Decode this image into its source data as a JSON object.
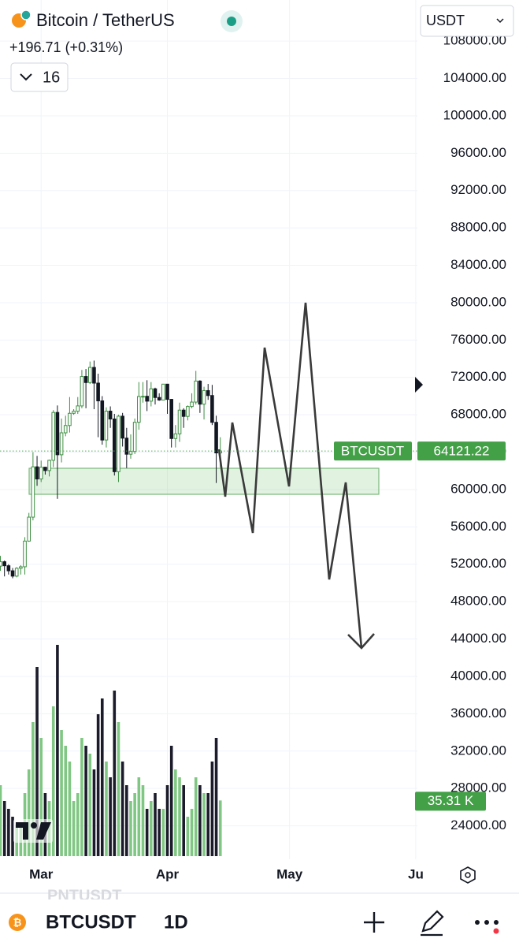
{
  "header": {
    "title": "Bitcoin / TetherUS",
    "change": "+196.71 (+0.31%)",
    "indicator_count": "16",
    "currency": "USDT"
  },
  "chart_data": {
    "type": "candlestick",
    "candles": [
      [
        51800,
        52900,
        51300,
        52270
      ],
      [
        52270,
        52400,
        50700,
        51840
      ],
      [
        51840,
        52000,
        50900,
        51300
      ],
      [
        51300,
        51600,
        50500,
        50730
      ],
      [
        50730,
        51700,
        50600,
        51570
      ],
      [
        51570,
        51900,
        50900,
        51730
      ],
      [
        51730,
        54900,
        50900,
        54480
      ],
      [
        54480,
        57500,
        54400,
        57040
      ],
      [
        57040,
        64000,
        56700,
        62430
      ],
      [
        62430,
        63600,
        60400,
        61130
      ],
      [
        61130,
        63100,
        60800,
        62390
      ],
      [
        62390,
        62400,
        61600,
        62030
      ],
      [
        62030,
        63200,
        61400,
        63130
      ],
      [
        63130,
        68500,
        62400,
        68250
      ],
      [
        68250,
        69000,
        59000,
        63720
      ],
      [
        63720,
        67600,
        62900,
        66070
      ],
      [
        66070,
        67900,
        65700,
        66850
      ],
      [
        66850,
        69900,
        66100,
        68160
      ],
      [
        68160,
        68600,
        68000,
        68380
      ],
      [
        68380,
        69900,
        68100,
        68950
      ],
      [
        68950,
        72800,
        68700,
        72100
      ],
      [
        72100,
        72900,
        68700,
        71450
      ],
      [
        71450,
        73700,
        71300,
        73070
      ],
      [
        73070,
        73800,
        68600,
        71390
      ],
      [
        71390,
        72400,
        65600,
        69490
      ],
      [
        69490,
        70000,
        64800,
        65300
      ],
      [
        65300,
        68800,
        64500,
        68390
      ],
      [
        68390,
        68900,
        66600,
        67550
      ],
      [
        67550,
        68100,
        61500,
        61910
      ],
      [
        61910,
        68000,
        60800,
        67850
      ],
      [
        67850,
        68200,
        64600,
        65500
      ],
      [
        65500,
        66600,
        62300,
        63780
      ],
      [
        63780,
        65900,
        63300,
        64070
      ],
      [
        64070,
        67600,
        63800,
        67200
      ],
      [
        67200,
        71500,
        66400,
        69960
      ],
      [
        69960,
        71500,
        69300,
        69980
      ],
      [
        69980,
        71700,
        68400,
        69460
      ],
      [
        69460,
        71500,
        68900,
        70780
      ],
      [
        70780,
        70900,
        69100,
        69850
      ],
      [
        69850,
        70300,
        69500,
        69580
      ],
      [
        69580,
        71300,
        69600,
        71280
      ],
      [
        71280,
        71300,
        68100,
        69650
      ],
      [
        69650,
        69700,
        64500,
        65460
      ],
      [
        65460,
        66900,
        64500,
        65960
      ],
      [
        65960,
        69300,
        65100,
        68500
      ],
      [
        68500,
        68700,
        66600,
        67830
      ],
      [
        67830,
        69000,
        67400,
        68890
      ],
      [
        68890,
        70300,
        68700,
        69360
      ],
      [
        69360,
        72700,
        69100,
        71610
      ],
      [
        71610,
        71700,
        68200,
        69140
      ],
      [
        69140,
        71000,
        67500,
        70590
      ],
      [
        70590,
        71300,
        69600,
        70060
      ],
      [
        70060,
        71200,
        66900,
        67190
      ],
      [
        67190,
        67900,
        60700,
        63920
      ],
      [
        63920,
        65600,
        62400,
        64121.22
      ]
    ],
    "volumes": [
      45,
      35,
      30,
      25,
      20,
      18,
      40,
      55,
      85,
      120,
      75,
      40,
      35,
      95,
      134,
      80,
      70,
      60,
      35,
      40,
      75,
      70,
      65,
      55,
      90,
      100,
      60,
      50,
      105,
      85,
      60,
      45,
      35,
      40,
      50,
      45,
      30,
      35,
      40,
      30,
      30,
      45,
      70,
      55,
      50,
      45,
      25,
      30,
      50,
      45,
      40,
      40,
      60,
      75,
      35.31
    ],
    "volume_label": "35.31 K",
    "volume_lim": [
      0,
      135
    ],
    "symbol": "BTCUSDT",
    "last_price": 64121.22,
    "up_color": "#3f8f43",
    "down_color": "#131722",
    "volume_up_color": "#80c783",
    "volume_down_color": "#1b1b2b",
    "xlim": [
      -0.1,
      102.4
    ],
    "xticks": [
      {
        "value": 10,
        "label": "Mar"
      },
      {
        "value": 41,
        "label": "Apr"
      },
      {
        "value": 71,
        "label": "May"
      },
      {
        "value": 102,
        "label": "Ju"
      }
    ],
    "ylim": [
      20420,
      112400
    ],
    "yticks": [
      {
        "value": 24000,
        "label": "24000.00"
      },
      {
        "value": 28000,
        "label": "28000.00"
      },
      {
        "value": 32000,
        "label": "32000.00"
      },
      {
        "value": 36000,
        "label": "36000.00"
      },
      {
        "value": 40000,
        "label": "40000.00"
      },
      {
        "value": 44000,
        "label": "44000.00"
      },
      {
        "value": 48000,
        "label": "48000.00"
      },
      {
        "value": 52000,
        "label": "52000.00"
      },
      {
        "value": 56000,
        "label": "56000.00"
      },
      {
        "value": 60000,
        "label": "60000.00"
      },
      {
        "value": 64000,
        "label": "64000.00"
      },
      {
        "value": 68000,
        "label": "68000.00"
      },
      {
        "value": 72000,
        "label": "72000.00"
      },
      {
        "value": 76000,
        "label": "76000.00"
      },
      {
        "value": 80000,
        "label": "80000.00"
      },
      {
        "value": 84000,
        "label": "84000.00"
      },
      {
        "value": 88000,
        "label": "88000.00"
      },
      {
        "value": 92000,
        "label": "92000.00"
      },
      {
        "value": 96000,
        "label": "96000.00"
      },
      {
        "value": 100000,
        "label": "100000.00"
      },
      {
        "value": 104000,
        "label": "104000.00"
      },
      {
        "value": 108000,
        "label": "108000.00"
      }
    ],
    "grid": true
  },
  "footer": {
    "ghost_symbol": "PNTUSDT",
    "symbol": "BTCUSDT",
    "interval": "1D"
  }
}
